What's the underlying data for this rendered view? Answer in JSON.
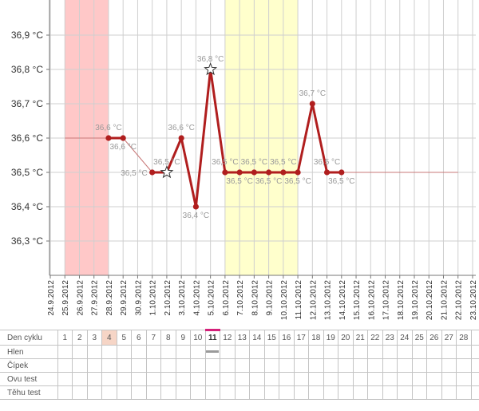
{
  "chart_data": {
    "type": "line",
    "ylim": [
      36.2,
      37.0
    ],
    "y_ticks": [
      "36,3 °C",
      "36,4 °C",
      "36,5 °C",
      "36,6 °C",
      "36,7 °C",
      "36,8 °C",
      "36,9 °C"
    ],
    "y_tick_values": [
      36.3,
      36.4,
      36.5,
      36.6,
      36.7,
      36.8,
      36.9
    ],
    "x_labels": [
      "24.9.2012",
      "25.9.2012",
      "26.9.2012",
      "27.9.2012",
      "28.9.2012",
      "29.9.2012",
      "30.9.2012",
      "1.10.2012",
      "2.10.2012",
      "3.10.2012",
      "4.10.2012",
      "5.10.2012",
      "6.10.2012",
      "7.10.2012",
      "8.10.2012",
      "9.10.2012",
      "10.10.2012",
      "11.10.2012",
      "12.10.2012",
      "13.10.2012",
      "14.10.2012",
      "15.10.2012",
      "16.10.2012",
      "17.10.2012",
      "18.10.2012",
      "19.10.2012",
      "20.10.2012",
      "21.10.2012",
      "22.10.2012",
      "23.10.2012"
    ],
    "shaded_ranges": [
      {
        "kind": "menstruation",
        "from": "25.9.2012",
        "to": "28.9.2012",
        "color": "#ffc8c8"
      },
      {
        "kind": "fertile",
        "from": "6.10.2012",
        "to": "11.10.2012",
        "color": "#ffffcc"
      }
    ],
    "baseline": {
      "value": 36.6,
      "to_value": 36.5,
      "color": "#c87878"
    },
    "series": [
      {
        "color": "#b01e1e",
        "points": [
          {
            "x": "28.9.2012",
            "y": 36.6,
            "label": "36,6 °C",
            "label_pos": "above",
            "marker": "dot"
          },
          {
            "x": "29.9.2012",
            "y": 36.6,
            "label": "36,6 °C",
            "label_pos": "below",
            "marker": "dot"
          },
          {
            "x": "1.10.2012",
            "y": 36.5,
            "label": "36,5 °C",
            "label_pos": "left",
            "marker": "dot"
          },
          {
            "x": "2.10.2012",
            "y": 36.5,
            "label": "36,5 °C",
            "label_pos": "above",
            "marker": "star"
          },
          {
            "x": "3.10.2012",
            "y": 36.6,
            "label": "36,6 °C",
            "label_pos": "above",
            "marker": "dot"
          },
          {
            "x": "4.10.2012",
            "y": 36.4,
            "label": "36,4 °C",
            "label_pos": "below",
            "marker": "dot"
          },
          {
            "x": "5.10.2012",
            "y": 36.8,
            "label": "36,8 °C",
            "label_pos": "above",
            "marker": "star"
          },
          {
            "x": "6.10.2012",
            "y": 36.5,
            "label": "36,5 °C",
            "label_pos": "above",
            "marker": "dot"
          },
          {
            "x": "7.10.2012",
            "y": 36.5,
            "label": "36,5 °C",
            "label_pos": "below",
            "marker": "dot"
          },
          {
            "x": "8.10.2012",
            "y": 36.5,
            "label": "36,5 °C",
            "label_pos": "above",
            "marker": "dot"
          },
          {
            "x": "9.10.2012",
            "y": 36.5,
            "label": "36,5 °C",
            "label_pos": "below",
            "marker": "dot"
          },
          {
            "x": "10.10.2012",
            "y": 36.5,
            "label": "36,5 °C",
            "label_pos": "above",
            "marker": "dot"
          },
          {
            "x": "11.10.2012",
            "y": 36.5,
            "label": "36,5 °C",
            "label_pos": "below",
            "marker": "dot"
          },
          {
            "x": "12.10.2012",
            "y": 36.7,
            "label": "36,7 °C",
            "label_pos": "above",
            "marker": "dot"
          },
          {
            "x": "13.10.2012",
            "y": 36.5,
            "label": "36,5 °C",
            "label_pos": "above",
            "marker": "dot"
          },
          {
            "x": "14.10.2012",
            "y": 36.5,
            "label": "36,5 °C",
            "label_pos": "below",
            "marker": "dot"
          }
        ]
      }
    ],
    "grid": true
  },
  "table": {
    "rows": [
      {
        "label": "Den cyklu",
        "kind": "header"
      },
      {
        "label": "Hlen",
        "kind": "mucus"
      },
      {
        "label": "Čípek",
        "kind": "empty"
      },
      {
        "label": "Ovu test",
        "kind": "empty"
      },
      {
        "label": "Těhu test",
        "kind": "empty"
      }
    ],
    "days": [
      "1",
      "2",
      "3",
      "4",
      "5",
      "6",
      "7",
      "8",
      "9",
      "10",
      "11",
      "12",
      "13",
      "14",
      "15",
      "16",
      "17",
      "18",
      "19",
      "20",
      "21",
      "22",
      "23",
      "24",
      "25",
      "26",
      "27",
      "28"
    ],
    "highlight_day": "4",
    "today_day": "11",
    "mucus_day": "11"
  }
}
